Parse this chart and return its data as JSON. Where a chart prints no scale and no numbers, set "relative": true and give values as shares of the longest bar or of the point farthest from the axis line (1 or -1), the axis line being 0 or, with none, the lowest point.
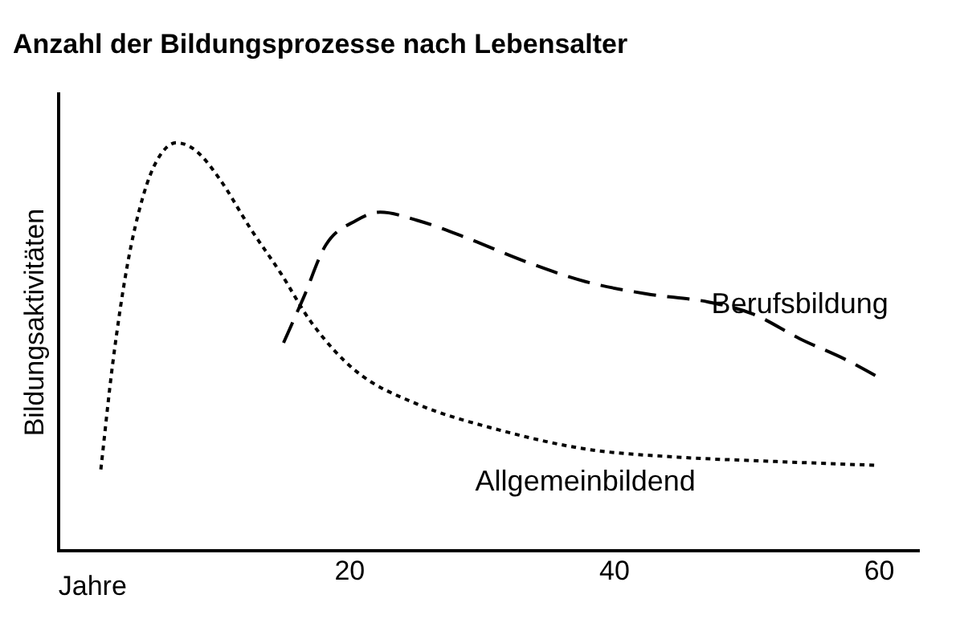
{
  "chart_data": {
    "type": "line",
    "title": "Anzahl der Bildungsprozesse nach Lebensalter",
    "xlabel": "Jahre",
    "ylabel": "Bildungsaktivitäten",
    "relative": true,
    "xlim": [
      -2,
      63
    ],
    "xticks": [
      20,
      40,
      60
    ],
    "grid": false,
    "legend": false,
    "marker": "none",
    "series": [
      {
        "name": "Allgemeinbildend",
        "color": "#000000",
        "line_style": "dotted",
        "x": [
          1.2,
          2.1,
          3.2,
          4.4,
          5.5,
          6.9,
          8.4,
          10.2,
          12.5,
          14.8,
          17.1,
          20.5,
          25.1,
          30.9,
          37.8,
          44.8,
          51.7,
          59.7
        ],
        "values": [
          0.2,
          0.46,
          0.7,
          0.87,
          0.96,
          1,
          0.98,
          0.91,
          0.79,
          0.68,
          0.56,
          0.44,
          0.36,
          0.3,
          0.25,
          0.23,
          0.22,
          0.21
        ]
      },
      {
        "name": "Berufsbildung",
        "color": "#000000",
        "line_style": "dashed",
        "x": [
          15,
          16.5,
          18.2,
          20.5,
          22.3,
          25.1,
          28.6,
          33.2,
          37.8,
          42.4,
          47.1,
          50.5,
          54,
          57.4,
          59.7
        ],
        "values": [
          0.51,
          0.62,
          0.75,
          0.81,
          0.83,
          0.81,
          0.77,
          0.71,
          0.66,
          0.63,
          0.61,
          0.58,
          0.52,
          0.47,
          0.43
        ]
      }
    ]
  }
}
